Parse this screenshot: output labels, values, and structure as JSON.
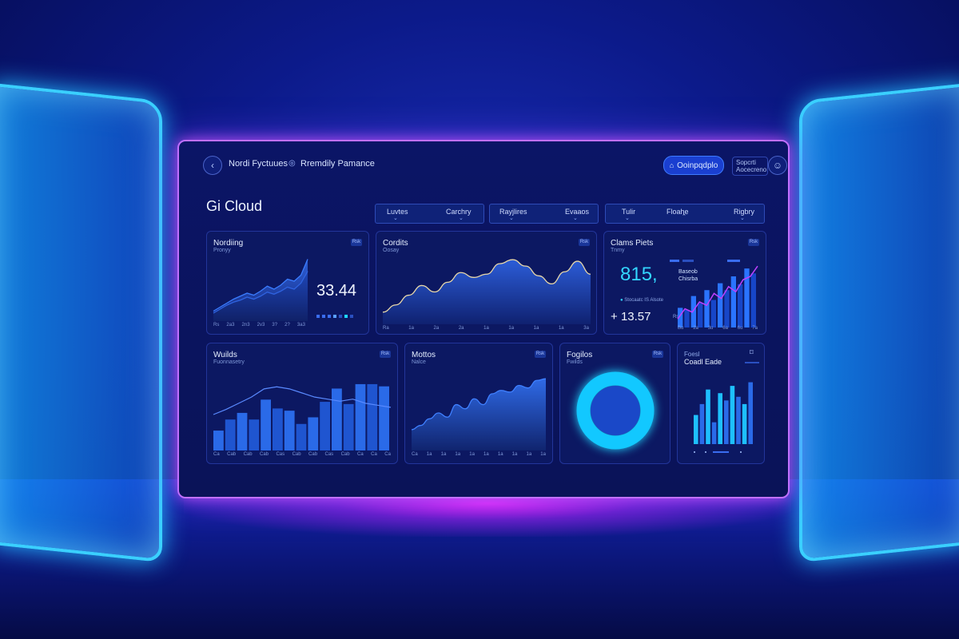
{
  "topbar": {
    "back_icon": "chevron-left-icon",
    "nav1": "Nordi Fyctuues",
    "nav2_icon": "circle-target-icon",
    "nav2": "Rremdily Pamance",
    "pill_icon": "lock-icon",
    "pill_label": "Ooinpqdplo",
    "text_box_line1": "Sopcrti",
    "text_box_line2": "Aocecreno",
    "avatar_icon": "user-icon"
  },
  "page_title": "Gi Cloud",
  "filter_groups": [
    {
      "items": [
        "Luvtes",
        "Carchry"
      ]
    },
    {
      "items": [
        "Rayjlires",
        "Evaaos"
      ]
    },
    {
      "items": [
        "Tulir",
        "Floahe",
        "Rigbry"
      ]
    }
  ],
  "cards": {
    "c1": {
      "title": "Nordiing",
      "sub": "Pronyy",
      "badge": "Rsk",
      "value": "33.44",
      "axis": [
        "Rs",
        "2a3",
        "2n3",
        "2v3",
        "3?",
        "2?",
        "3a3"
      ]
    },
    "c2": {
      "title": "Cordits",
      "sub": "Oosay",
      "badge": "Rsk",
      "axis": [
        "Ra",
        "1a",
        "2a",
        "2a",
        "1a",
        "1a",
        "1a",
        "1a",
        "3a"
      ]
    },
    "c3": {
      "title": "Clams Piets",
      "sub": "Tnmy",
      "badge": "Rsk",
      "value": "815,",
      "sub_value_small": "Baseob",
      "sub_value_small2": "Chisrba",
      "legend_text": "Stocaatc IS Alsote",
      "value2": "13.57",
      "value2_suffix": "Rs",
      "axis": [
        "Bu",
        "2a",
        "3u",
        "6a",
        "6u",
        "7a"
      ]
    },
    "c4": {
      "title": "Wuilds",
      "sub": "Fuonnasetry",
      "badge": "Rsk",
      "axis": [
        "Ca",
        "Cab",
        "Cab",
        "Cab",
        "Cas",
        "Cab",
        "Cab",
        "Cas",
        "Cab",
        "Ca",
        "Ca",
        "Ca"
      ]
    },
    "c5": {
      "title": "Mottos",
      "sub": "Nalce",
      "badge": "Rsk",
      "axis": [
        "Ca",
        "1a",
        "1a",
        "1a",
        "1a",
        "1a",
        "1a",
        "1a",
        "1a",
        "1a"
      ]
    },
    "c6": {
      "title": "Fogilos",
      "sub": "Fwilds",
      "badge": "Rsk"
    },
    "c7": {
      "title": "Foesl",
      "sub": "Coadl Eade",
      "badge_icon": "message-icon"
    }
  },
  "chart_data": [
    {
      "type": "area",
      "title": "Nordiing",
      "series": [
        {
          "values": [
            10,
            14,
            18,
            22,
            25,
            28,
            26,
            30,
            35,
            32,
            36,
            42,
            40,
            46,
            62
          ]
        },
        {
          "values": [
            8,
            12,
            16,
            19,
            21,
            24,
            22,
            25,
            29,
            27,
            30,
            34,
            32,
            38,
            50
          ]
        }
      ]
    },
    {
      "type": "area",
      "title": "Cordits",
      "series": [
        {
          "values": [
            15,
            24,
            36,
            48,
            40,
            52,
            64,
            58,
            62,
            75,
            80,
            72,
            60,
            50,
            65,
            78,
            62
          ]
        }
      ]
    },
    {
      "type": "bar",
      "title": "Clams Piets",
      "values": [
        20,
        18,
        32,
        25,
        38,
        28,
        45,
        38,
        52,
        44,
        60,
        55
      ]
    },
    {
      "type": "bar",
      "title": "Wuilds",
      "values": [
        18,
        28,
        34,
        28,
        46,
        38,
        36,
        24,
        30,
        44,
        56,
        42,
        60,
        60,
        58
      ]
    },
    {
      "type": "area",
      "title": "Mottos",
      "series": [
        {
          "values": [
            25,
            30,
            38,
            45,
            40,
            55,
            50,
            62,
            55,
            68,
            72,
            70,
            78,
            75,
            84,
            86
          ]
        }
      ]
    },
    {
      "type": "pie",
      "title": "Fogilos",
      "values": [
        100
      ]
    },
    {
      "type": "bar",
      "title": "Foesl",
      "values": [
        40,
        55,
        75,
        30,
        70,
        60,
        80,
        65,
        55,
        85
      ]
    }
  ]
}
